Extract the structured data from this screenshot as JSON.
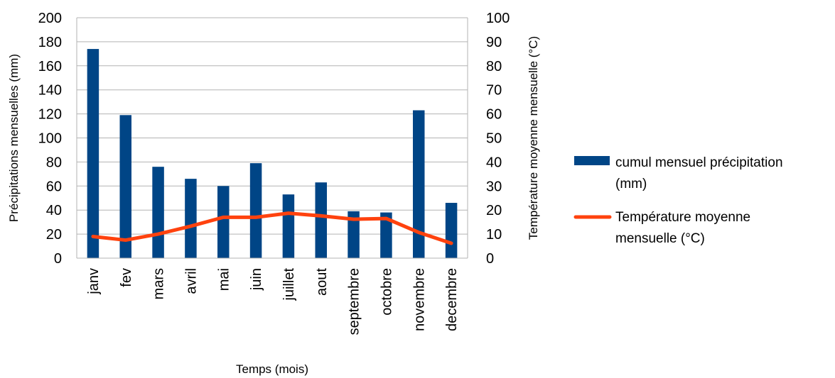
{
  "chart_data": {
    "type": "bar",
    "categories": [
      "janv",
      "fev",
      "mars",
      "avril",
      "mai",
      "juin",
      "juillet",
      "aout",
      "septembre",
      "octobre",
      "novembre",
      "decembre"
    ],
    "series": [
      {
        "name": "cumul mensuel précipitation (mm)",
        "legend_lines": [
          "cumul mensuel précipitation",
          "(mm)"
        ],
        "type": "bar",
        "axis": "left",
        "color": "#004586",
        "values": [
          174,
          119,
          76,
          66,
          60,
          79,
          53,
          63,
          39,
          38,
          123,
          46
        ]
      },
      {
        "name": "Température moyenne mensuelle (°C)",
        "legend_lines": [
          "Température moyenne",
          "mensuelle (°C)"
        ],
        "type": "line",
        "axis": "right",
        "color": "#FF420E",
        "values": [
          9,
          7.5,
          10,
          13.3,
          17,
          17,
          18.7,
          17.6,
          16.2,
          16.5,
          10.7,
          6.2
        ]
      }
    ],
    "xlabel": "Temps (mois)",
    "ylabel": "Précipitations mensuelles (mm)",
    "y2label": "Température moyenne mensuelle (°C)",
    "ylim": [
      0,
      200
    ],
    "y2lim": [
      0,
      100
    ],
    "yticks": [
      0,
      20,
      40,
      60,
      80,
      100,
      120,
      140,
      160,
      180,
      200
    ],
    "y2ticks": [
      0,
      10,
      20,
      30,
      40,
      50,
      60,
      70,
      80,
      90,
      100
    ],
    "grid": true,
    "legend_position": "right"
  }
}
